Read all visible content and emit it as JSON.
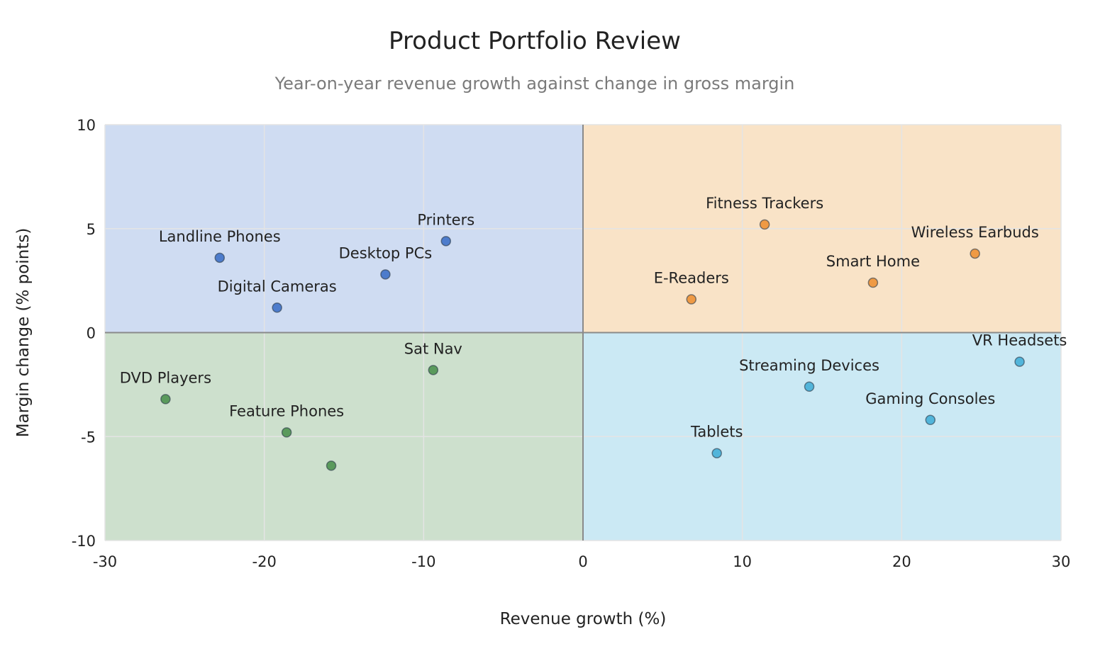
{
  "title": "Product Portfolio Review",
  "subtitle": "Year-on-year revenue growth against change in gross margin",
  "colors": {
    "q_top_left": "#cfdcf2",
    "q_top_right": "#f9e3c7",
    "q_bottom_left": "#cde0cd",
    "q_bottom_right": "#cbe9f4",
    "s_top_left": "#4d7ccc",
    "s_top_right": "#ef9a44",
    "s_bottom_left": "#5a9a5c",
    "s_bottom_right": "#52b5da",
    "grid": "#e4e4e4",
    "zero_axis": "#8a8a8a"
  },
  "chart_data": {
    "type": "scatter",
    "title": "Product Portfolio Review",
    "subtitle": "Year-on-year revenue growth against change in gross margin",
    "xlabel": "Revenue growth (%)",
    "ylabel": "Margin change (% points)",
    "xlim": [
      -30,
      30
    ],
    "ylim": [
      -10,
      10
    ],
    "xticks": [
      -30,
      -20,
      -10,
      0,
      10,
      20,
      30
    ],
    "yticks": [
      -10,
      -5,
      0,
      5,
      10
    ],
    "grid": true,
    "quadrant_shading": true,
    "points": [
      {
        "label": "Landline Phones",
        "x": -22.8,
        "y": 3.6,
        "quadrant": "top_left"
      },
      {
        "label": "Digital Cameras",
        "x": -19.2,
        "y": 1.2,
        "quadrant": "top_left"
      },
      {
        "label": "Desktop PCs",
        "x": -12.4,
        "y": 2.8,
        "quadrant": "top_left"
      },
      {
        "label": "Printers",
        "x": -8.6,
        "y": 4.4,
        "quadrant": "top_left"
      },
      {
        "label": "DVD Players",
        "x": -26.2,
        "y": -3.2,
        "quadrant": "bottom_left"
      },
      {
        "label": "Feature Phones",
        "x": -18.6,
        "y": -4.8,
        "quadrant": "bottom_left"
      },
      {
        "label": "",
        "x": -15.8,
        "y": -6.4,
        "quadrant": "bottom_left"
      },
      {
        "label": "Sat Nav",
        "x": -9.4,
        "y": -1.8,
        "quadrant": "bottom_left"
      },
      {
        "label": "E-Readers",
        "x": 6.8,
        "y": 1.6,
        "quadrant": "top_right"
      },
      {
        "label": "Fitness Trackers",
        "x": 11.4,
        "y": 5.2,
        "quadrant": "top_right"
      },
      {
        "label": "Smart Home",
        "x": 18.2,
        "y": 2.4,
        "quadrant": "top_right"
      },
      {
        "label": "Wireless Earbuds",
        "x": 24.6,
        "y": 3.8,
        "quadrant": "top_right"
      },
      {
        "label": "Tablets",
        "x": 8.4,
        "y": -5.8,
        "quadrant": "bottom_right"
      },
      {
        "label": "Streaming Devices",
        "x": 14.2,
        "y": -2.6,
        "quadrant": "bottom_right"
      },
      {
        "label": "Gaming Consoles",
        "x": 21.8,
        "y": -4.2,
        "quadrant": "bottom_right"
      },
      {
        "label": "VR Headsets",
        "x": 27.4,
        "y": -1.4,
        "quadrant": "bottom_right"
      }
    ]
  }
}
